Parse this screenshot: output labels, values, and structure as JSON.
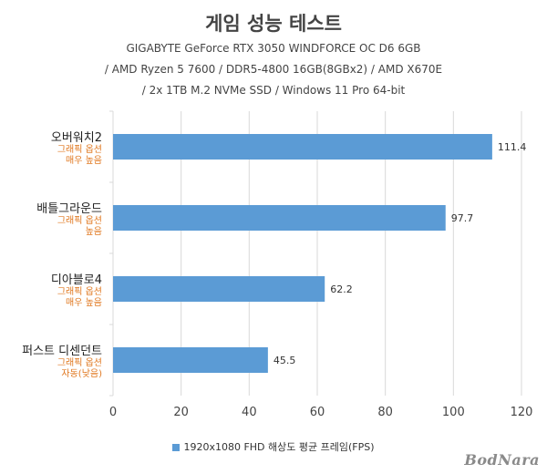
{
  "chart_data": {
    "type": "bar",
    "orientation": "horizontal",
    "title": "게임 성능 테스트",
    "subtitle_lines": [
      "GIGABYTE GeForce RTX 3050 WINDFORCE OC D6 6GB",
      "/ AMD Ryzen 5 7600 / DDR5-4800 16GB(8GBx2) / AMD X670E",
      "/ 2x 1TB M.2 NVMe SSD / Windows 11 Pro 64-bit"
    ],
    "categories": [
      {
        "name": "오버워치2",
        "sub": [
          "그래픽 옵션",
          "매우 높음"
        ]
      },
      {
        "name": "배틀그라운드",
        "sub": [
          "그래픽 옵션",
          "높음"
        ]
      },
      {
        "name": "디아블로4",
        "sub": [
          "그래픽 옵션",
          "매우 높음"
        ]
      },
      {
        "name": "퍼스트 디센던트",
        "sub": [
          "그래픽 옵션",
          "자동(낮음)"
        ]
      }
    ],
    "series": [
      {
        "name": "1920x1080 FHD 해상도 평균 프레임(FPS)",
        "values": [
          111.4,
          97.7,
          62.2,
          45.5
        ]
      }
    ],
    "value_labels": [
      "111.4",
      "97.7",
      "62.2",
      "45.5"
    ],
    "xlim": [
      0,
      120
    ],
    "xticks": [
      "0",
      "20",
      "40",
      "60",
      "80",
      "100",
      "120"
    ],
    "grid": true,
    "legend_position": "bottom",
    "bar_color": "#5b9bd5"
  },
  "watermark": "BodNara"
}
